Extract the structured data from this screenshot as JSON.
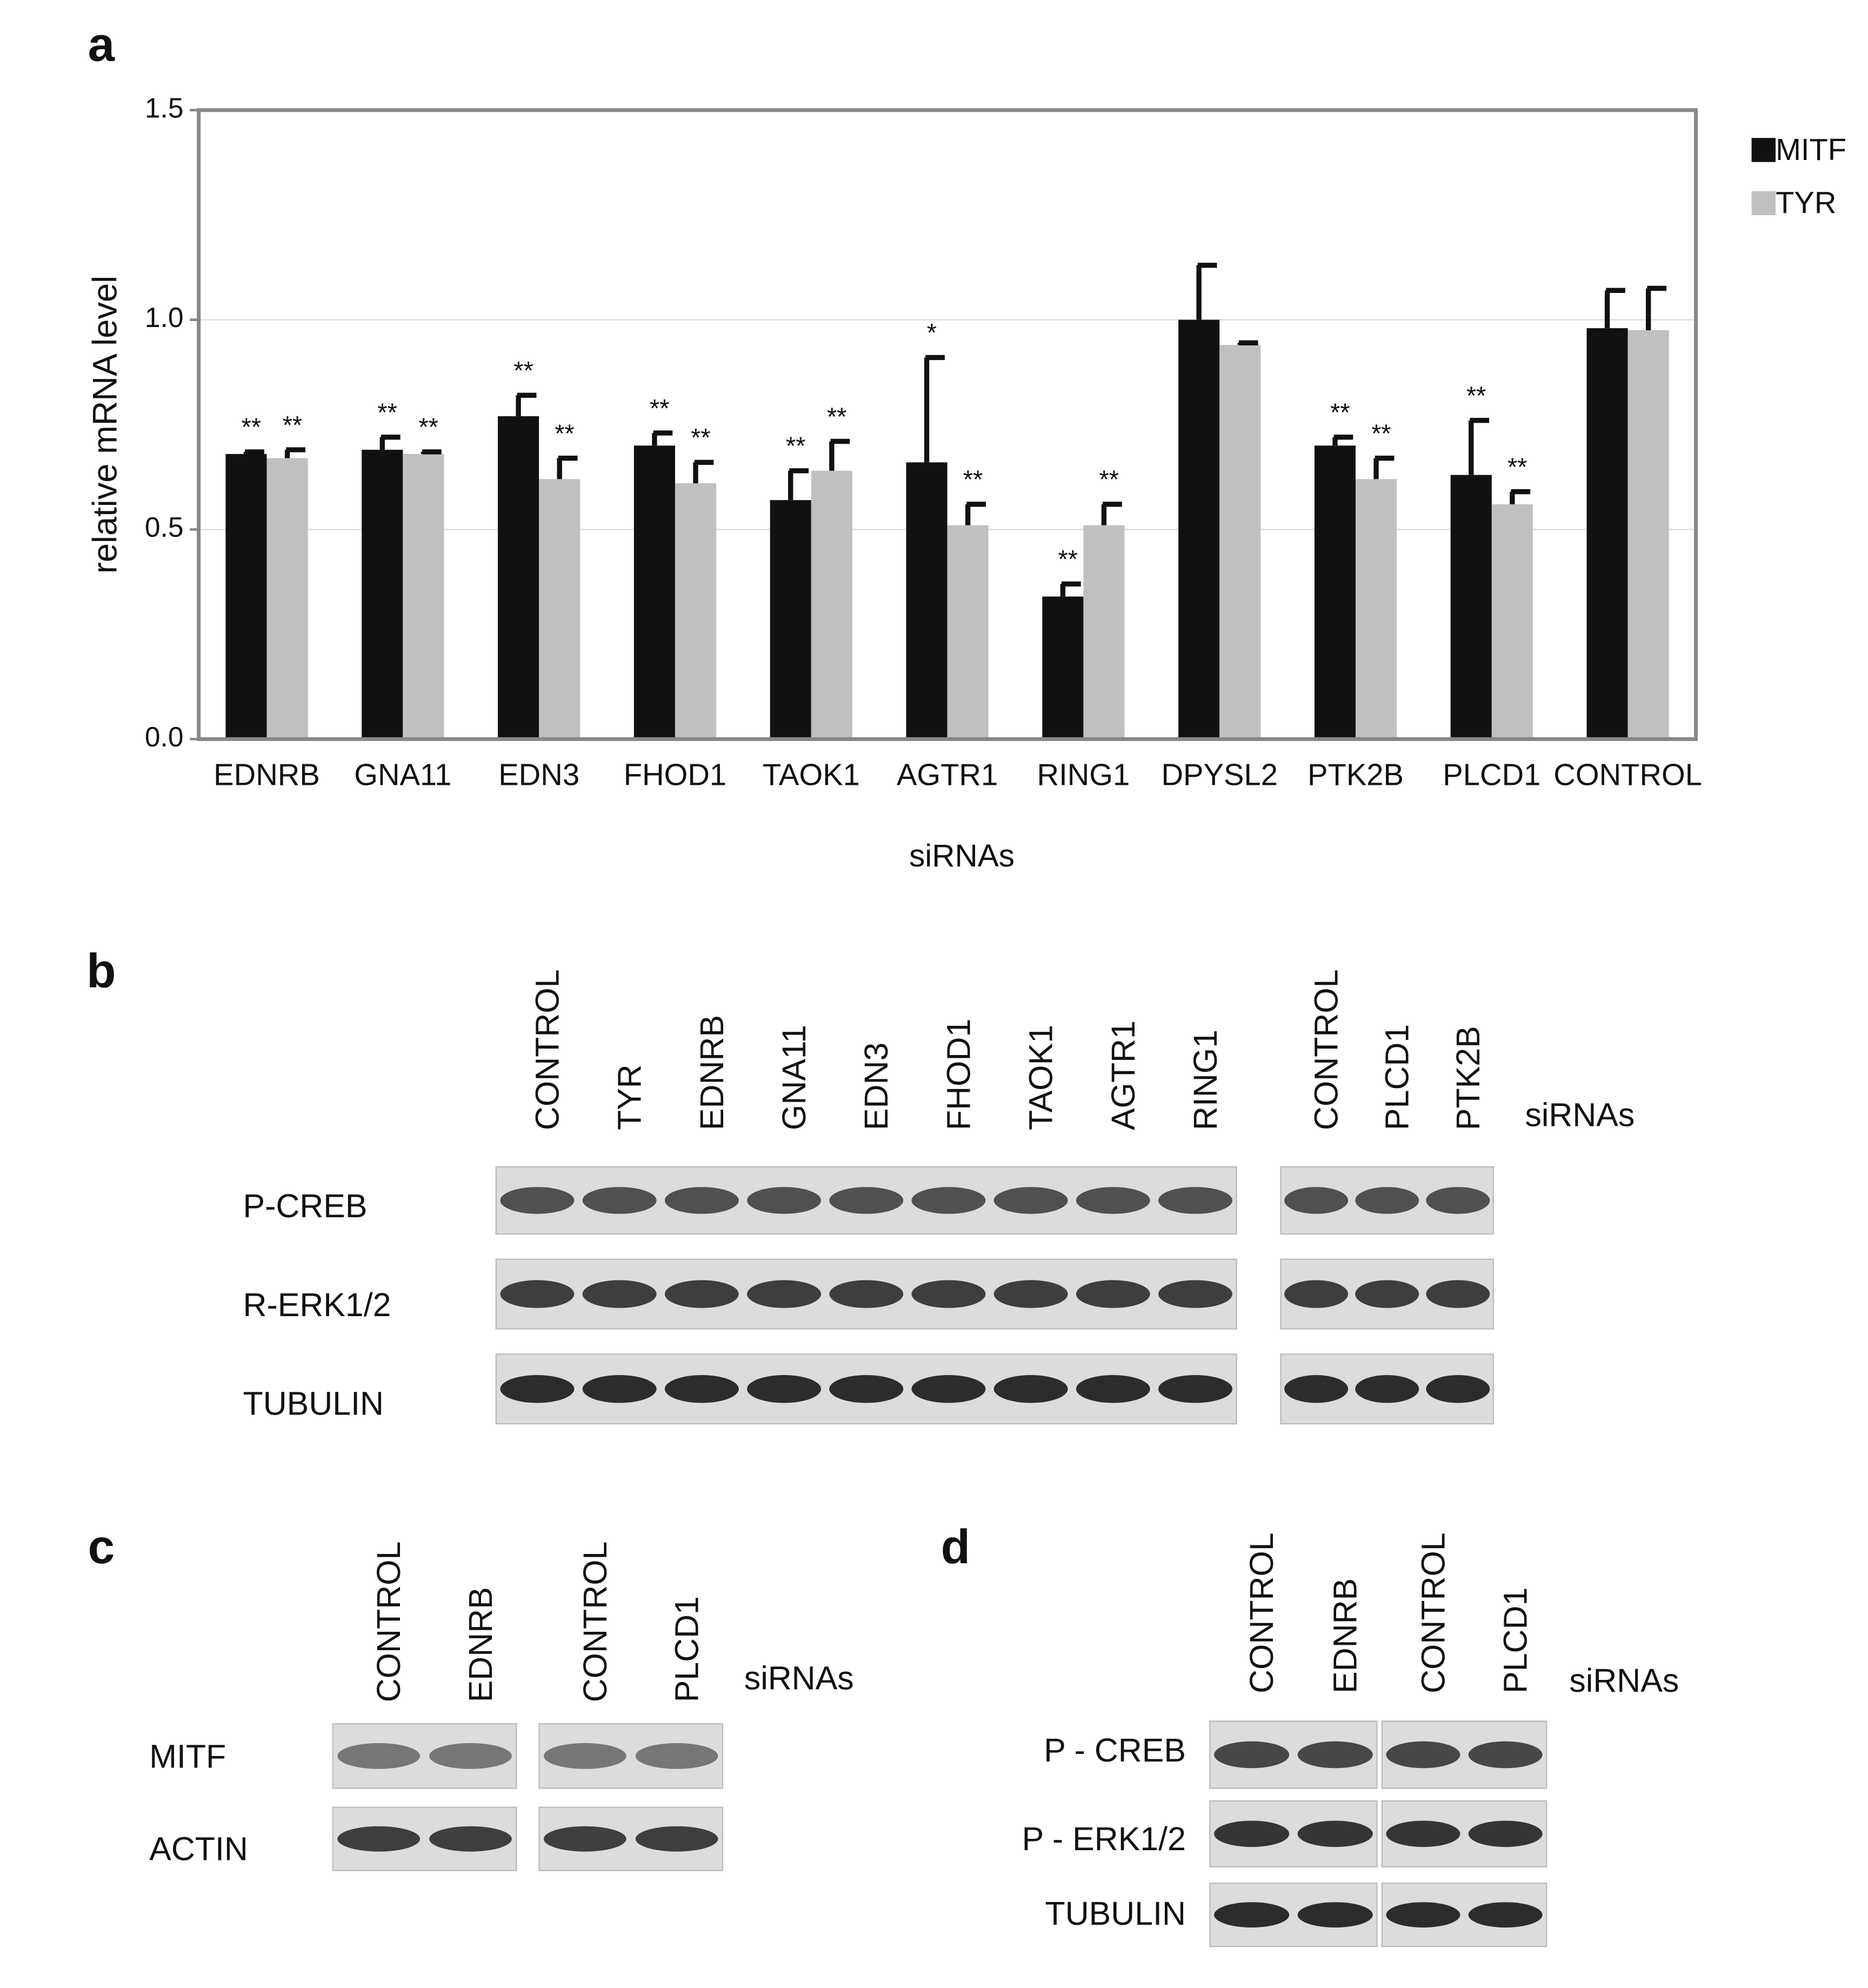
{
  "panel_labels": [
    "a",
    "b",
    "c",
    "d"
  ],
  "chart_data": {
    "type": "bar",
    "y_label": "relative mRNA level",
    "x_label": "siRNAs",
    "categories": [
      "EDNRB",
      "GNA11",
      "EDN3",
      "FHOD1",
      "TAOK1",
      "AGTR1",
      "RING1",
      "DPYSL2",
      "PTK2B",
      "PLCD1",
      "CONTROL"
    ],
    "series": [
      {
        "name": "MITF",
        "color": "#111111",
        "values": [
          0.68,
          0.69,
          0.77,
          0.7,
          0.57,
          0.66,
          0.34,
          1.0,
          0.7,
          0.63,
          0.98
        ],
        "errors": [
          0.005,
          0.03,
          0.05,
          0.03,
          0.07,
          0.25,
          0.03,
          0.13,
          0.02,
          0.13,
          0.09
        ],
        "significance": [
          "**",
          "**",
          "**",
          "**",
          "**",
          "*",
          "**",
          null,
          "**",
          "**",
          null
        ]
      },
      {
        "name": "TYR",
        "color": "#c0c0c0",
        "values": [
          0.67,
          0.68,
          0.62,
          0.61,
          0.64,
          0.51,
          0.51,
          0.94,
          0.62,
          0.56,
          0.975
        ],
        "errors": [
          0.02,
          0.005,
          0.05,
          0.05,
          0.07,
          0.05,
          0.05,
          0.005,
          0.05,
          0.03,
          0.1
        ],
        "significance": [
          "**",
          "**",
          "**",
          "**",
          "**",
          "**",
          "**",
          null,
          "**",
          "**",
          null
        ]
      }
    ],
    "ylim": [
      0,
      1.5
    ],
    "yticks": [
      {
        "value": 0,
        "label": "0.0"
      },
      {
        "value": 0.5,
        "label": "0.5"
      },
      {
        "value": 1,
        "label": "1.0"
      },
      {
        "value": 1.5,
        "label": "1.5"
      }
    ],
    "grid": true,
    "legend": "right"
  },
  "panel_b": {
    "groups": [
      [
        "CONTROL",
        "TYR",
        "EDNRB",
        "GNA11",
        "EDN3",
        "FHOD1",
        "TAOK1",
        "AGTR1",
        "RING1"
      ],
      [
        "CONTROL",
        "PLCD1",
        "PTK2B"
      ]
    ],
    "suffix": "siRNAs",
    "rows": [
      "P-CREB",
      "R-ERK1/2",
      "TUBULIN"
    ]
  },
  "panel_c": {
    "groups": [
      [
        "CONTROL",
        "EDNRB"
      ],
      [
        "CONTROL",
        "PLCD1"
      ]
    ],
    "suffix": "siRNAs",
    "rows": [
      "MITF",
      "ACTIN"
    ]
  },
  "panel_d": {
    "groups": [
      [
        "CONTROL",
        "EDNRB"
      ],
      [
        "CONTROL",
        "PLCD1"
      ]
    ],
    "suffix": "siRNAs",
    "rows": [
      "P  - CREB",
      "P  - ERK1/2",
      "TUBULIN"
    ]
  }
}
